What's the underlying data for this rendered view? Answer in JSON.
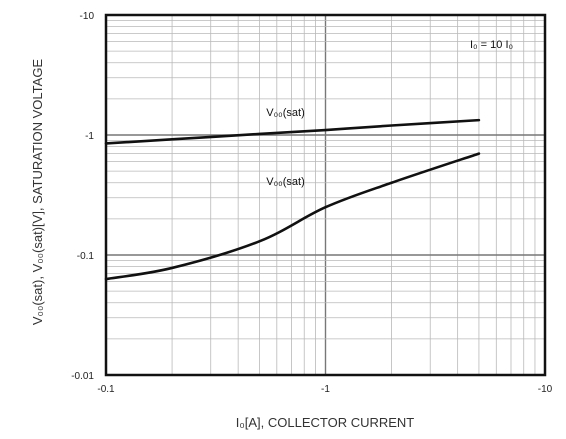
{
  "chart_data": {
    "type": "line",
    "xscale": "log",
    "yscale": "log",
    "xlim": [
      -0.1,
      -10
    ],
    "ylim": [
      -0.01,
      -10
    ],
    "grid": true,
    "xticks": [
      "-0.1",
      "-1",
      "-10"
    ],
    "yticks": [
      "-10",
      "-1",
      "-0.1",
      "-0.01"
    ],
    "xlabel": "I₀[A], COLLECTOR CURRENT",
    "ylabel": "V₀₀(sat), V₀₀(sat)[V], SATURATION VOLTAGE",
    "annotation": "I₀ = 10 I₀",
    "series": [
      {
        "name": "V₀₀(sat)",
        "color": "#111111",
        "x": [
          -0.1,
          -0.2,
          -0.5,
          -1,
          -2,
          -5
        ],
        "y": [
          -0.85,
          -0.92,
          -1.02,
          -1.1,
          -1.2,
          -1.33
        ]
      },
      {
        "name": "V₀₀(sat)",
        "color": "#111111",
        "x": [
          -0.1,
          -0.2,
          -0.5,
          -1,
          -2,
          -5
        ],
        "y": [
          -0.063,
          -0.078,
          -0.13,
          -0.25,
          -0.4,
          -0.7
        ]
      }
    ]
  }
}
